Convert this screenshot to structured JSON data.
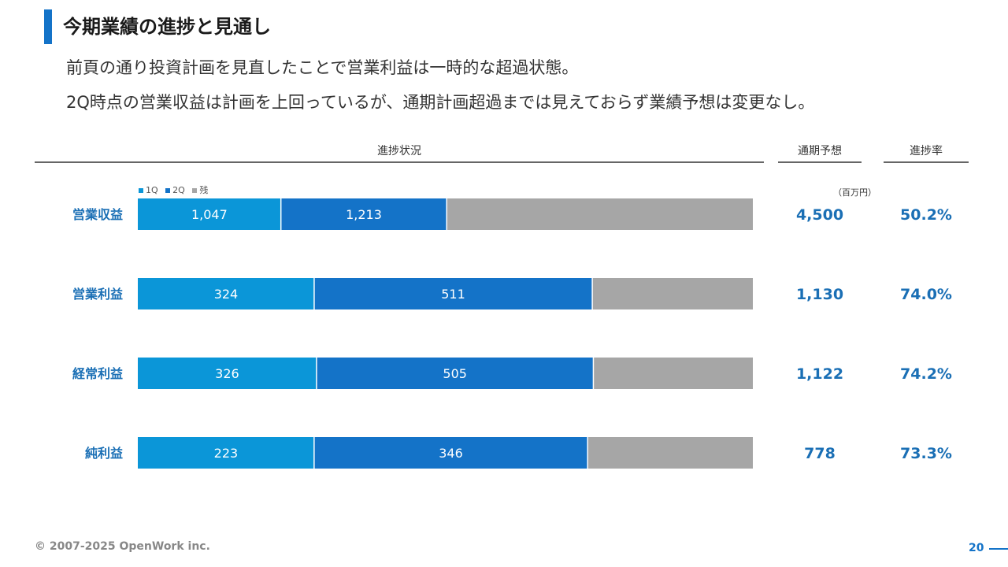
{
  "page": {
    "title": "今期業績の進捗と見通し",
    "subtitle_lines": [
      "前頁の通り投資計画を見直したことで営業利益は一時的な超過状態。",
      "2Q時点の営業収益は計画を上回っているが、通期計画超過までは見えておらず業績予想は変更なし。"
    ],
    "footer": "© 2007-2025 OpenWork inc.",
    "page_number": "20"
  },
  "table": {
    "headers": {
      "progress": "進捗状況",
      "forecast": "通期予想",
      "rate": "進捗率"
    },
    "unit": "（百万円）"
  },
  "colors": {
    "accent": "#1473c8",
    "q1": "#0b96d8",
    "q2": "#1473c8",
    "remaining": "#a6a6a6",
    "bar_text": "#ffffff",
    "label": "#1a6fb5"
  },
  "chart_data": {
    "type": "bar",
    "orientation": "horizontal",
    "stacked": true,
    "legend_position": "top-left",
    "categories": [
      "営業収益",
      "営業利益",
      "経常利益",
      "純利益"
    ],
    "series": [
      {
        "name": "1Q",
        "values": [
          1047,
          324,
          326,
          223
        ]
      },
      {
        "name": "2Q",
        "values": [
          1213,
          511,
          505,
          346
        ]
      },
      {
        "name": "残",
        "values": [
          2240,
          295,
          291,
          209
        ]
      }
    ],
    "value_labels": {
      "1Q": [
        "1,047",
        "324",
        "326",
        "223"
      ],
      "2Q": [
        "1,213",
        "511",
        "505",
        "346"
      ]
    },
    "full_year_forecast": [
      "4,500",
      "1,130",
      "1,122",
      "778"
    ],
    "progress_rate": [
      "50.2%",
      "74.0%",
      "74.2%",
      "73.3%"
    ]
  }
}
